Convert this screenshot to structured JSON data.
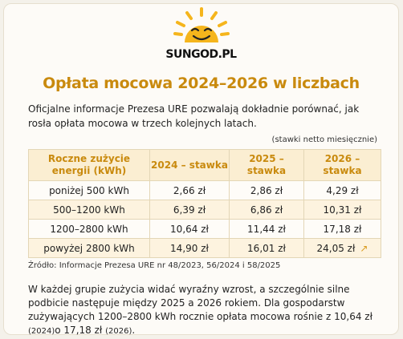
{
  "brand": {
    "name": "SUNGOD.PL"
  },
  "title": "Opłata mocowa 2024–2026 w liczbach",
  "intro": "Oficjalne informacje Prezesa URE pozwalają dokładnie porównać, jak rosła opłata mocowa w trzech kolejnych latach.",
  "note": "(stawki netto miesięcznie)",
  "table": {
    "headers": [
      "Roczne zużycie energii (kWh)",
      "2024 – stawka",
      "2025 – stawka",
      "2026 – stawka"
    ],
    "rows": [
      [
        "poniżej 500 kWh",
        "2,66 zł",
        "2,86 zł",
        "4,29 zł"
      ],
      [
        "500–1200 kWh",
        "6,39 zł",
        "6,86 zł",
        "10,31 zł"
      ],
      [
        "1200–2800 kWh",
        "10,64 zł",
        "11,44 zł",
        "17,18 zł"
      ],
      [
        "powyżej 2800 kWh",
        "14,90 zł",
        "16,01 zł",
        "24,05 zł"
      ]
    ]
  },
  "source": "Źródło: Informacje Prezesa URE nr 48/2023, 56/2024 i 58/2025",
  "summary": {
    "text": "W każdej grupie zużycia widać wyraźny wzrost, a szczególnie silne podbicie następuje między 2025 a 2026 rokiem. Dla gospodarstw zużywających 1200–2800 kWh rocznie opłata mocowa rośnie z 10,64 zł ",
    "year1": "(2024)",
    "mid": "o 17,18 zł ",
    "year2": "(2026)",
    "end": "."
  },
  "colors": {
    "accent": "#c98a0e",
    "sun": "#f5b51c"
  },
  "icons": {
    "logo": "smiling-sun-icon",
    "trend": "arrow-up-right-icon"
  }
}
